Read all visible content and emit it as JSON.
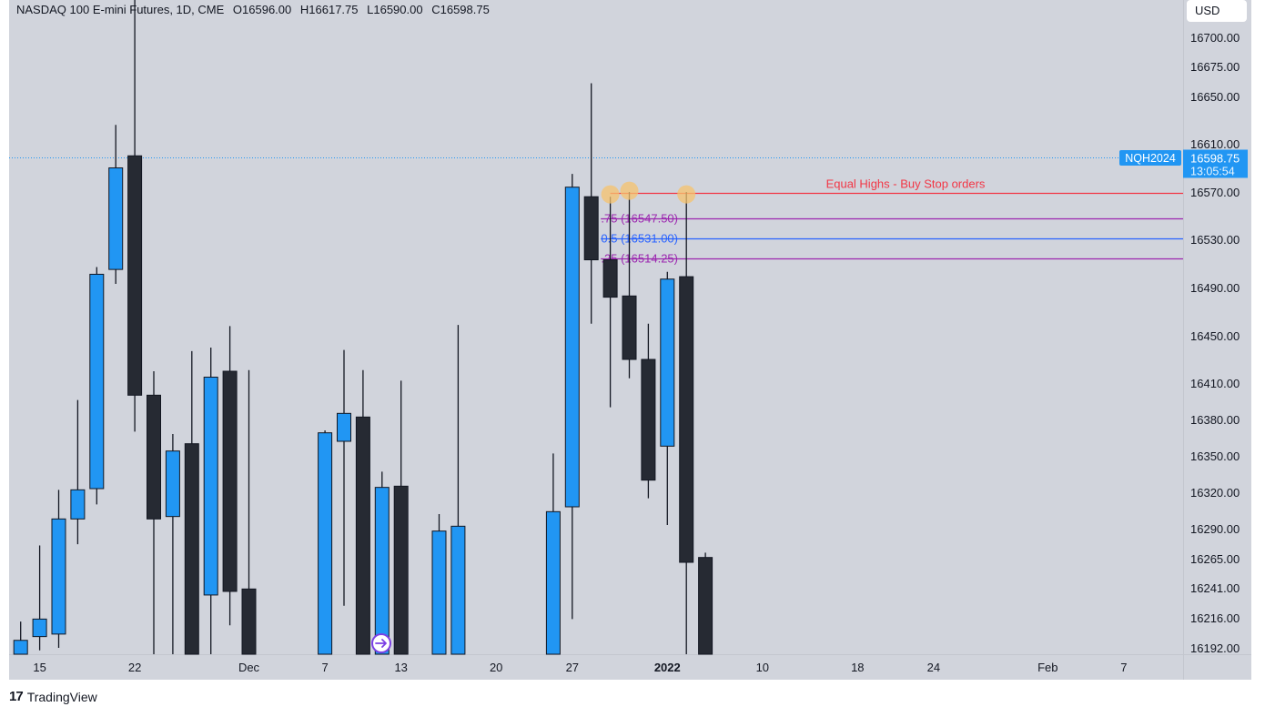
{
  "header": {
    "symbol": "NASDAQ 100 E-mini Futures, 1D, CME",
    "open": "O16596.00",
    "high": "H16617.75",
    "low": "L16590.00",
    "close": "C16598.75"
  },
  "currency_label": "USD",
  "branding": {
    "logo_mark": "17",
    "name": "TradingView"
  },
  "price_badge": {
    "symbol": "NQH2024",
    "price": "16598.75",
    "countdown": "13:05:54"
  },
  "colors": {
    "background": "#d1d4dc",
    "up": "#2196f3",
    "down": "#262a33",
    "wick": "#131722",
    "equal_highs_line": "#f23645",
    "fib_purple": "#9c27b0",
    "fib_blue": "#2962ff",
    "marker": "#f5c36e",
    "badge": "#2196f3"
  },
  "chart_data": {
    "type": "candlestick",
    "y_ticks": [
      16192,
      16216,
      16241,
      16265,
      16290,
      16320,
      16350,
      16380,
      16410,
      16450,
      16490,
      16530,
      16570,
      16610,
      16650,
      16675,
      16700
    ],
    "x_ticks": [
      {
        "label": "15",
        "day": -1
      },
      {
        "label": "22",
        "day": 4
      },
      {
        "label": "Dec",
        "day": 10
      },
      {
        "label": "7",
        "day": 14
      },
      {
        "label": "13",
        "day": 18
      },
      {
        "label": "20",
        "day": 23
      },
      {
        "label": "27",
        "day": 27
      },
      {
        "label": "2022",
        "day": 32,
        "bold": true
      },
      {
        "label": "10",
        "day": 37
      },
      {
        "label": "18",
        "day": 42
      },
      {
        "label": "24",
        "day": 46
      },
      {
        "label": "Feb",
        "day": 52
      },
      {
        "label": "7",
        "day": 56
      }
    ],
    "candles": [
      {
        "d": -2,
        "o": 16178,
        "h": 16213,
        "l": 16150,
        "c": 16198
      },
      {
        "d": -1,
        "o": 16201,
        "h": 16276,
        "l": 16190,
        "c": 16215
      },
      {
        "d": 0,
        "o": 16203,
        "h": 16322,
        "l": 16192,
        "c": 16298
      },
      {
        "d": 1,
        "o": 16298,
        "h": 16396,
        "l": 16277,
        "c": 16322
      },
      {
        "d": 2,
        "o": 16323,
        "h": 16507,
        "l": 16310,
        "c": 16501
      },
      {
        "d": 3,
        "o": 16505,
        "h": 16626,
        "l": 16493,
        "c": 16590
      },
      {
        "d": 4,
        "o": 16600,
        "h": 16818,
        "l": 16370,
        "c": 16400
      },
      {
        "d": 5,
        "o": 16400,
        "h": 16420,
        "l": 16130,
        "c": 16298
      },
      {
        "d": 6,
        "o": 16300,
        "h": 16368,
        "l": 16110,
        "c": 16354
      },
      {
        "d": 7,
        "o": 16360,
        "h": 16437,
        "l": 16020,
        "c": 16050
      },
      {
        "d": 8,
        "o": 16235,
        "h": 16440,
        "l": 16100,
        "c": 16415
      },
      {
        "d": 9,
        "o": 16420,
        "h": 16458,
        "l": 16210,
        "c": 16238
      },
      {
        "d": 10,
        "o": 16240,
        "h": 16421,
        "l": 16040,
        "c": 16080
      },
      {
        "d": 14,
        "o": 16100,
        "h": 16371,
        "l": 16050,
        "c": 16369
      },
      {
        "d": 15,
        "o": 16362,
        "h": 16438,
        "l": 16226,
        "c": 16385
      },
      {
        "d": 16,
        "o": 16382,
        "h": 16421,
        "l": 16102,
        "c": 16130
      },
      {
        "d": 17,
        "o": 16040,
        "h": 16337,
        "l": 16020,
        "c": 16324
      },
      {
        "d": 18,
        "o": 16325,
        "h": 16412,
        "l": 16100,
        "c": 16150
      },
      {
        "d": 20,
        "o": 16070,
        "h": 16302,
        "l": 16040,
        "c": 16288
      },
      {
        "d": 21,
        "o": 16150,
        "h": 16459,
        "l": 16120,
        "c": 16292
      },
      {
        "d": 26,
        "o": 16120,
        "h": 16352,
        "l": 16080,
        "c": 16304
      },
      {
        "d": 27,
        "o": 16308,
        "h": 16585,
        "l": 16215,
        "c": 16574
      },
      {
        "d": 28,
        "o": 16566,
        "h": 16661,
        "l": 16460,
        "c": 16513
      },
      {
        "d": 29,
        "o": 16513,
        "h": 16566,
        "l": 16390,
        "c": 16482
      },
      {
        "d": 30,
        "o": 16483,
        "h": 16570,
        "l": 16414,
        "c": 16430
      },
      {
        "d": 31,
        "o": 16430,
        "h": 16460,
        "l": 16315,
        "c": 16330
      },
      {
        "d": 32,
        "o": 16358,
        "h": 16503,
        "l": 16293,
        "c": 16497
      },
      {
        "d": 33,
        "o": 16499,
        "h": 16570,
        "l": 16020,
        "c": 16262
      },
      {
        "d": 34,
        "o": 16266,
        "h": 16270,
        "l": 16100,
        "c": 16120
      }
    ],
    "levels": [
      {
        "name": "equal-highs",
        "price": 16569,
        "from_day": 29,
        "label": "Equal Highs - Buy Stop orders"
      },
      {
        "name": "fib-075",
        "price": 16547.5,
        "from_day": 28.5,
        "label": ".75 (16547.50)"
      },
      {
        "name": "fib-05",
        "price": 16531.0,
        "from_day": 28.5,
        "label": "0.5 (16531.00)"
      },
      {
        "name": "fib-025",
        "price": 16514.25,
        "from_day": 28.5,
        "label": ".25 (16514.25)"
      }
    ],
    "markers": [
      {
        "day": 29,
        "price": 16568
      },
      {
        "day": 30,
        "price": 16571
      },
      {
        "day": 33,
        "price": 16568
      }
    ],
    "current_price": 16598.75
  }
}
